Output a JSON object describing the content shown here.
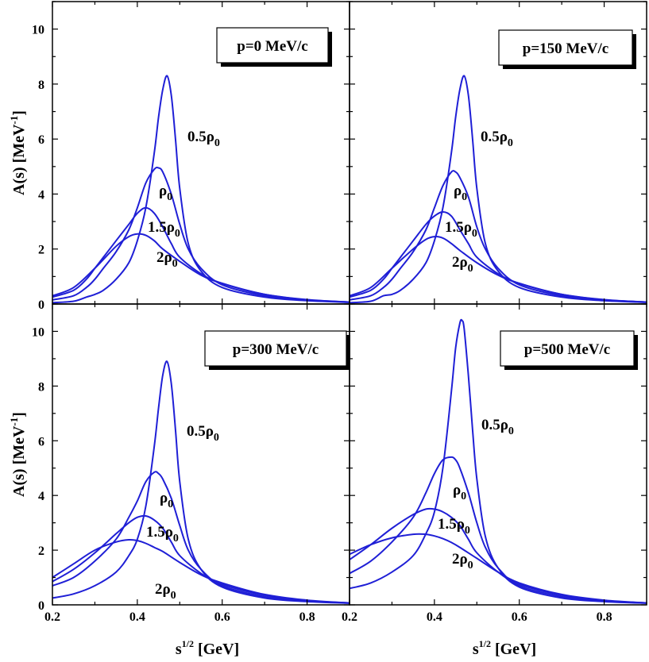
{
  "chart_data": [
    {
      "type": "line",
      "title": "p=0 MeV/c",
      "xlabel": "s^1/2 [GeV]",
      "ylabel": "A(s) [MeV^-1]",
      "xlim": [
        0.2,
        0.9
      ],
      "ylim": [
        0,
        11
      ],
      "x_ticks": [
        0.2,
        0.4,
        0.6,
        0.8
      ],
      "y_ticks": [
        0,
        2,
        4,
        6,
        8,
        10
      ],
      "series": [
        {
          "name": "0.5ρ0",
          "x": [
            0.2,
            0.25,
            0.28,
            0.3,
            0.32,
            0.35,
            0.38,
            0.4,
            0.42,
            0.44,
            0.45,
            0.46,
            0.47,
            0.48,
            0.49,
            0.5,
            0.52,
            0.55,
            0.6,
            0.7,
            0.8,
            0.9
          ],
          "values": [
            0.05,
            0.1,
            0.25,
            0.35,
            0.5,
            0.9,
            1.5,
            2.3,
            3.5,
            5.5,
            6.8,
            7.8,
            8.3,
            7.6,
            6.0,
            4.2,
            2.2,
            1.2,
            0.6,
            0.25,
            0.12,
            0.06
          ]
        },
        {
          "name": "ρ0",
          "x": [
            0.2,
            0.25,
            0.28,
            0.3,
            0.32,
            0.35,
            0.38,
            0.4,
            0.42,
            0.44,
            0.45,
            0.46,
            0.48,
            0.5,
            0.52,
            0.55,
            0.6,
            0.7,
            0.8,
            0.9
          ],
          "values": [
            0.15,
            0.3,
            0.6,
            0.9,
            1.3,
            1.9,
            2.7,
            3.5,
            4.4,
            4.9,
            4.95,
            4.8,
            4.0,
            2.9,
            2.0,
            1.3,
            0.7,
            0.3,
            0.14,
            0.07
          ]
        },
        {
          "name": "1.5ρ0",
          "x": [
            0.2,
            0.25,
            0.28,
            0.3,
            0.32,
            0.35,
            0.38,
            0.4,
            0.42,
            0.44,
            0.46,
            0.48,
            0.5,
            0.55,
            0.6,
            0.7,
            0.8,
            0.9
          ],
          "values": [
            0.25,
            0.5,
            0.9,
            1.3,
            1.7,
            2.3,
            2.9,
            3.3,
            3.5,
            3.3,
            2.8,
            2.2,
            1.7,
            1.1,
            0.75,
            0.35,
            0.15,
            0.07
          ]
        },
        {
          "name": "2ρ0",
          "x": [
            0.2,
            0.25,
            0.3,
            0.35,
            0.38,
            0.4,
            0.42,
            0.44,
            0.46,
            0.5,
            0.55,
            0.6,
            0.7,
            0.8,
            0.9
          ],
          "values": [
            0.3,
            0.6,
            1.3,
            2.1,
            2.45,
            2.55,
            2.5,
            2.3,
            2.0,
            1.55,
            1.05,
            0.75,
            0.35,
            0.16,
            0.07
          ]
        }
      ],
      "labels": [
        "0.5ρ0",
        "ρ0",
        "1.5ρ0",
        "2ρ0"
      ]
    },
    {
      "type": "line",
      "title": "p=150 MeV/c",
      "xlabel": "s^1/2 [GeV]",
      "ylabel": "",
      "xlim": [
        0.2,
        0.9
      ],
      "ylim": [
        0,
        11
      ],
      "x_ticks": [
        0.2,
        0.4,
        0.6,
        0.8
      ],
      "y_ticks": [
        0,
        2,
        4,
        6,
        8,
        10
      ],
      "series": [
        {
          "name": "0.5ρ0",
          "x": [
            0.2,
            0.25,
            0.28,
            0.3,
            0.32,
            0.35,
            0.38,
            0.4,
            0.42,
            0.44,
            0.45,
            0.46,
            0.47,
            0.48,
            0.49,
            0.5,
            0.52,
            0.55,
            0.6,
            0.7,
            0.8,
            0.9
          ],
          "values": [
            0.05,
            0.1,
            0.3,
            0.35,
            0.5,
            0.9,
            1.5,
            2.3,
            3.5,
            5.5,
            6.8,
            7.8,
            8.3,
            7.6,
            6.0,
            4.2,
            2.2,
            1.2,
            0.6,
            0.25,
            0.12,
            0.06
          ]
        },
        {
          "name": "ρ0",
          "x": [
            0.2,
            0.25,
            0.28,
            0.3,
            0.32,
            0.35,
            0.38,
            0.4,
            0.42,
            0.44,
            0.45,
            0.46,
            0.48,
            0.5,
            0.52,
            0.55,
            0.6,
            0.7,
            0.8,
            0.9
          ],
          "values": [
            0.15,
            0.3,
            0.6,
            0.9,
            1.3,
            1.9,
            2.7,
            3.5,
            4.3,
            4.8,
            4.8,
            4.6,
            3.9,
            2.8,
            2.0,
            1.3,
            0.7,
            0.3,
            0.14,
            0.07
          ]
        },
        {
          "name": "1.5ρ0",
          "x": [
            0.2,
            0.25,
            0.28,
            0.3,
            0.32,
            0.35,
            0.38,
            0.4,
            0.42,
            0.44,
            0.46,
            0.48,
            0.5,
            0.55,
            0.6,
            0.7,
            0.8,
            0.9
          ],
          "values": [
            0.25,
            0.5,
            0.9,
            1.3,
            1.7,
            2.3,
            2.9,
            3.2,
            3.35,
            3.2,
            2.7,
            2.2,
            1.7,
            1.1,
            0.75,
            0.35,
            0.15,
            0.07
          ]
        },
        {
          "name": "2ρ0",
          "x": [
            0.2,
            0.25,
            0.3,
            0.35,
            0.38,
            0.4,
            0.42,
            0.44,
            0.46,
            0.5,
            0.55,
            0.6,
            0.7,
            0.8,
            0.9
          ],
          "values": [
            0.3,
            0.6,
            1.3,
            2.0,
            2.35,
            2.45,
            2.4,
            2.2,
            1.95,
            1.5,
            1.05,
            0.75,
            0.35,
            0.16,
            0.07
          ]
        }
      ],
      "labels": [
        "0.5ρ0",
        "ρ0",
        "1.5ρ0",
        "2ρ0"
      ]
    },
    {
      "type": "line",
      "title": "p=300 MeV/c",
      "xlabel": "s^1/2 [GeV]",
      "ylabel": "A(s) [MeV^-1]",
      "xlim": [
        0.2,
        0.9
      ],
      "ylim": [
        0,
        11
      ],
      "x_ticks": [
        0.2,
        0.4,
        0.6,
        0.8
      ],
      "y_ticks": [
        0,
        2,
        4,
        6,
        8,
        10
      ],
      "series": [
        {
          "name": "0.5ρ0",
          "x": [
            0.2,
            0.25,
            0.3,
            0.35,
            0.38,
            0.4,
            0.42,
            0.44,
            0.45,
            0.46,
            0.47,
            0.48,
            0.49,
            0.5,
            0.52,
            0.55,
            0.6,
            0.7,
            0.8,
            0.9
          ],
          "values": [
            0.25,
            0.4,
            0.7,
            1.2,
            1.8,
            2.4,
            3.6,
            5.8,
            7.2,
            8.4,
            8.9,
            8.1,
            6.4,
            4.5,
            2.4,
            1.3,
            0.65,
            0.25,
            0.12,
            0.06
          ]
        },
        {
          "name": "ρ0",
          "x": [
            0.2,
            0.25,
            0.3,
            0.35,
            0.38,
            0.4,
            0.42,
            0.44,
            0.45,
            0.46,
            0.48,
            0.5,
            0.52,
            0.55,
            0.6,
            0.7,
            0.8,
            0.9
          ],
          "values": [
            0.7,
            1.0,
            1.6,
            2.4,
            3.2,
            3.8,
            4.5,
            4.85,
            4.8,
            4.6,
            3.9,
            2.9,
            2.0,
            1.3,
            0.7,
            0.3,
            0.14,
            0.07
          ]
        },
        {
          "name": "1.5ρ0",
          "x": [
            0.2,
            0.25,
            0.3,
            0.35,
            0.38,
            0.4,
            0.42,
            0.44,
            0.46,
            0.48,
            0.5,
            0.55,
            0.6,
            0.7,
            0.8,
            0.9
          ],
          "values": [
            0.85,
            1.3,
            1.9,
            2.6,
            3.0,
            3.2,
            3.25,
            3.1,
            2.8,
            2.3,
            1.8,
            1.15,
            0.75,
            0.35,
            0.15,
            0.07
          ]
        },
        {
          "name": "2ρ0",
          "x": [
            0.2,
            0.25,
            0.3,
            0.35,
            0.38,
            0.4,
            0.42,
            0.44,
            0.46,
            0.5,
            0.55,
            0.6,
            0.7,
            0.8,
            0.9
          ],
          "values": [
            1.0,
            1.5,
            2.0,
            2.3,
            2.38,
            2.35,
            2.25,
            2.1,
            1.95,
            1.55,
            1.1,
            0.8,
            0.38,
            0.17,
            0.07
          ]
        }
      ],
      "labels": [
        "0.5ρ0",
        "ρ0",
        "1.5ρ0",
        "2ρ0"
      ]
    },
    {
      "type": "line",
      "title": "p=500 MeV/c",
      "xlabel": "s^1/2 [GeV]",
      "ylabel": "",
      "xlim": [
        0.2,
        0.9
      ],
      "ylim": [
        0,
        11
      ],
      "x_ticks": [
        0.2,
        0.4,
        0.6,
        0.8
      ],
      "y_ticks": [
        0,
        2,
        4,
        6,
        8,
        10
      ],
      "series": [
        {
          "name": "0.5ρ0",
          "x": [
            0.2,
            0.25,
            0.3,
            0.35,
            0.38,
            0.4,
            0.42,
            0.44,
            0.45,
            0.46,
            0.465,
            0.47,
            0.48,
            0.49,
            0.5,
            0.52,
            0.55,
            0.6,
            0.7,
            0.8,
            0.9
          ],
          "values": [
            0.6,
            0.8,
            1.2,
            1.8,
            2.6,
            3.4,
            5.0,
            7.8,
            9.4,
            10.3,
            10.4,
            10.1,
            8.4,
            6.4,
            4.6,
            2.5,
            1.35,
            0.65,
            0.25,
            0.12,
            0.06
          ]
        },
        {
          "name": "ρ0",
          "x": [
            0.2,
            0.25,
            0.3,
            0.35,
            0.38,
            0.4,
            0.42,
            0.44,
            0.45,
            0.46,
            0.48,
            0.5,
            0.52,
            0.55,
            0.6,
            0.7,
            0.8,
            0.9
          ],
          "values": [
            1.15,
            1.6,
            2.3,
            3.2,
            4.1,
            4.8,
            5.3,
            5.4,
            5.3,
            5.0,
            4.1,
            3.0,
            2.1,
            1.35,
            0.7,
            0.3,
            0.14,
            0.07
          ]
        },
        {
          "name": "1.5ρ0",
          "x": [
            0.2,
            0.25,
            0.3,
            0.35,
            0.38,
            0.4,
            0.42,
            0.44,
            0.46,
            0.48,
            0.5,
            0.55,
            0.6,
            0.7,
            0.8,
            0.9
          ],
          "values": [
            1.65,
            2.2,
            2.8,
            3.3,
            3.5,
            3.5,
            3.4,
            3.2,
            2.9,
            2.4,
            1.9,
            1.2,
            0.75,
            0.35,
            0.15,
            0.07
          ]
        },
        {
          "name": "2ρ0",
          "x": [
            0.2,
            0.25,
            0.3,
            0.35,
            0.38,
            0.4,
            0.42,
            0.44,
            0.46,
            0.5,
            0.55,
            0.6,
            0.7,
            0.8,
            0.9
          ],
          "values": [
            1.85,
            2.2,
            2.45,
            2.58,
            2.58,
            2.52,
            2.42,
            2.28,
            2.1,
            1.7,
            1.2,
            0.8,
            0.38,
            0.17,
            0.07
          ]
        }
      ],
      "labels": [
        "0.5ρ0",
        "ρ0",
        "1.5ρ0",
        "2ρ0"
      ]
    }
  ],
  "colors": {
    "curve": "#1f1fd6",
    "axis": "#000000"
  }
}
